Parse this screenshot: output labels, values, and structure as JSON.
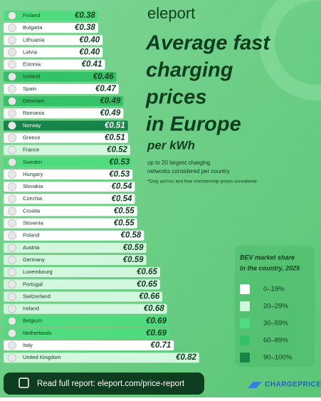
{
  "brand": "eleport",
  "chart_data": {
    "type": "bar",
    "orientation": "horizontal",
    "title": [
      "Average fast",
      "charging",
      "prices",
      "in Europe"
    ],
    "subtitle": "per kWh",
    "notes": [
      "up to 20 largest charging",
      "networks considered per country",
      "*Only ad-hoc and free membership prices considered"
    ],
    "categories": [
      "Finland",
      "Bulgaria",
      "Lithuania",
      "Latvia",
      "Estonia",
      "Iceland",
      "Spain",
      "Denmark",
      "Romania",
      "Norway",
      "Greece",
      "France",
      "Sweden",
      "Hungary",
      "Slovakia",
      "Czechia",
      "Croatia",
      "Slovenia",
      "Poland",
      "Austria",
      "Germany",
      "Luxembourg",
      "Portugal",
      "Switzerland",
      "Ireland",
      "Belgium",
      "Netherlands",
      "Italy",
      "United Kingdom"
    ],
    "values": [
      0.38,
      0.38,
      0.4,
      0.4,
      0.41,
      0.46,
      0.47,
      0.49,
      0.49,
      0.51,
      0.51,
      0.52,
      0.53,
      0.53,
      0.54,
      0.54,
      0.55,
      0.55,
      0.58,
      0.59,
      0.59,
      0.65,
      0.65,
      0.66,
      0.68,
      0.69,
      0.69,
      0.71,
      0.82
    ],
    "value_labels": [
      "€0.38",
      "€0.38",
      "€0.40",
      "€0.40",
      "€0.41",
      "€0.46",
      "€0.47",
      "€0.49",
      "€0.49",
      "€0.51",
      "€0.51",
      "€0.52",
      "€0.53",
      "€0.53",
      "€0.54",
      "€0.54",
      "€0.55",
      "€0.55",
      "€0.58",
      "€0.59",
      "€0.59",
      "€0.65",
      "€0.65",
      "€0.66",
      "€0.68",
      "€0.69",
      "€0.69",
      "€0.71",
      "€0.82"
    ],
    "colors": [
      "#4fdc7f",
      "#ffffff",
      "#ffffff",
      "#ffffff",
      "#ffffff",
      "#33c266",
      "#ffffff",
      "#33c266",
      "#ffffff",
      "#17854a",
      "#ffffff",
      "#d3f7dc",
      "#4fdc7f",
      "#ffffff",
      "#ffffff",
      "#ffffff",
      "#ffffff",
      "#ffffff",
      "#ffffff",
      "#d3f7dc",
      "#d3f7dc",
      "#d3f7dc",
      "#d3f7dc",
      "#d3f7dc",
      "#d3f7dc",
      "#4fdc7f",
      "#4fdc7f",
      "#ffffff",
      "#d3f7dc"
    ],
    "legend": {
      "title": [
        "BEV market share",
        "in the country, 2025"
      ],
      "items": [
        {
          "label": "0–19%",
          "color": "#ffffff"
        },
        {
          "label": "20–29%",
          "color": "#d3f7dc"
        },
        {
          "label": "30–59%",
          "color": "#4fdc7f"
        },
        {
          "label": "60–89%",
          "color": "#33c266"
        },
        {
          "label": "90–100%",
          "color": "#17854a"
        }
      ]
    }
  },
  "footer": {
    "link": "Read full report: eleport.com/price-report",
    "partner": "CHARGEPRICE"
  }
}
